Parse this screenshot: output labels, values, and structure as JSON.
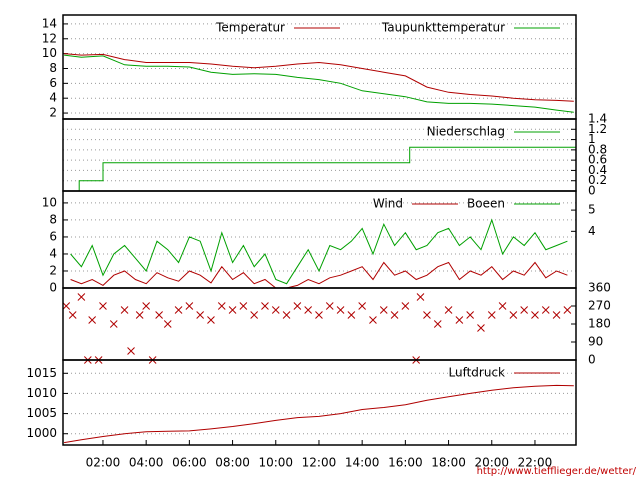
{
  "chart_data": [
    {
      "type": "line",
      "xlim": [
        0.15,
        23.9
      ],
      "ylim": [
        1.2,
        15.2
      ],
      "yticks": [
        2,
        4,
        6,
        8,
        10,
        12,
        14
      ],
      "grid": true,
      "x": [
        0.2,
        1,
        2,
        3,
        4,
        5,
        6,
        7,
        8,
        9,
        10,
        11,
        12,
        13,
        14,
        15,
        16,
        17,
        18,
        19,
        20,
        21,
        22,
        23,
        23.8
      ],
      "series": [
        {
          "name": "Temperatur",
          "color": "#b00000",
          "values": [
            10.0,
            9.8,
            9.9,
            9.2,
            8.8,
            8.8,
            8.8,
            8.6,
            8.3,
            8.1,
            8.3,
            8.6,
            8.8,
            8.5,
            8.0,
            7.5,
            7.0,
            5.5,
            4.8,
            4.5,
            4.3,
            4.0,
            3.8,
            3.7,
            3.6
          ]
        },
        {
          "name": "Taupunkttemperatur",
          "color": "#00a000",
          "values": [
            9.8,
            9.5,
            9.7,
            8.5,
            8.3,
            8.3,
            8.2,
            7.5,
            7.2,
            7.3,
            7.2,
            6.8,
            6.5,
            6.0,
            5.0,
            4.6,
            4.2,
            3.5,
            3.3,
            3.3,
            3.2,
            3.0,
            2.8,
            2.4,
            2.1
          ]
        }
      ]
    },
    {
      "type": "line",
      "xlim": [
        0.15,
        23.9
      ],
      "y2lim": [
        0,
        1.4
      ],
      "y2ticks": [
        0,
        0.2,
        0.4,
        0.6,
        0.8,
        1,
        1.2,
        1.4
      ],
      "grid": true,
      "x": [
        0.9,
        0.9,
        2,
        2,
        16.2,
        16.2,
        23.9
      ],
      "series": [
        {
          "name": "Niederschlag",
          "color": "#00a000",
          "axis": "y2",
          "values": [
            0,
            0.2,
            0.2,
            0.55,
            0.55,
            0.85,
            0.85
          ]
        }
      ]
    },
    {
      "type": "line",
      "xlim": [
        0.15,
        23.9
      ],
      "ylim": [
        0,
        11.4
      ],
      "yticks": [
        0,
        2,
        4,
        6,
        8,
        10
      ],
      "y2lim": [
        1.33,
        5.9
      ],
      "y2ticks": [
        4,
        5
      ],
      "grid": true,
      "x": [
        0.5,
        1,
        1.5,
        2,
        2.5,
        3,
        3.5,
        4,
        4.5,
        5,
        5.5,
        6,
        6.5,
        7,
        7.5,
        8,
        8.5,
        9,
        9.5,
        10,
        10.5,
        11,
        11.5,
        12,
        12.5,
        13,
        13.5,
        14,
        14.5,
        15,
        15.5,
        16,
        16.5,
        17,
        17.5,
        18,
        18.5,
        19,
        19.5,
        20,
        20.5,
        21,
        21.5,
        22,
        22.5,
        23,
        23.5
      ],
      "series": [
        {
          "name": "Wind",
          "color": "#b00000",
          "values": [
            1,
            0.5,
            1,
            0.3,
            1.5,
            2,
            1,
            0.5,
            1.8,
            1.2,
            0.8,
            2,
            1.5,
            0.6,
            2.5,
            1,
            1.8,
            0.5,
            1,
            0,
            0,
            0.3,
            1,
            0.5,
            1.2,
            1.5,
            2,
            2.5,
            1,
            3,
            1.5,
            2,
            1,
            1.5,
            2.5,
            3,
            1,
            2,
            1.5,
            2.5,
            1,
            2,
            1.5,
            3,
            1.2,
            2,
            1.5
          ]
        },
        {
          "name": "Boeen",
          "color": "#00a000",
          "values": [
            4,
            2.5,
            5,
            1.5,
            4,
            5,
            3.5,
            2,
            5.5,
            4.5,
            3,
            6,
            5.5,
            2,
            6.5,
            3,
            5,
            2.5,
            4,
            1,
            0.5,
            2.5,
            4.5,
            2,
            5,
            4.5,
            5.5,
            7,
            4,
            7.5,
            5,
            6.5,
            4.5,
            5,
            6.5,
            7,
            5,
            6,
            4.5,
            8,
            4,
            6,
            5,
            6.5,
            4.5,
            5,
            5.5
          ]
        }
      ]
    },
    {
      "type": "scatter",
      "xlim": [
        0.15,
        23.9
      ],
      "y2lim": [
        0,
        360
      ],
      "y2ticks": [
        0,
        90,
        180,
        270,
        360
      ],
      "color": "#b00000",
      "x": [
        0.3,
        0.6,
        1,
        1.3,
        1.5,
        1.8,
        2,
        2.5,
        3,
        3.3,
        3.7,
        4,
        4.3,
        4.6,
        5,
        5.5,
        6,
        6.5,
        7,
        7.5,
        8,
        8.5,
        9,
        9.5,
        10,
        10.5,
        11,
        11.5,
        12,
        12.5,
        13,
        13.5,
        14,
        14.5,
        15,
        15.5,
        16,
        16.5,
        16.7,
        17,
        17.5,
        18,
        18.5,
        19,
        19.5,
        20,
        20.5,
        21,
        21.5,
        22,
        22.5,
        23,
        23.5
      ],
      "values": [
        270,
        225,
        315,
        0,
        200,
        0,
        270,
        180,
        250,
        45,
        225,
        270,
        0,
        225,
        180,
        250,
        270,
        225,
        200,
        270,
        250,
        270,
        225,
        270,
        250,
        225,
        270,
        250,
        225,
        270,
        250,
        225,
        270,
        200,
        250,
        225,
        270,
        0,
        315,
        225,
        180,
        250,
        200,
        225,
        160,
        225,
        270,
        225,
        250,
        225,
        250,
        225,
        250
      ]
    },
    {
      "type": "line",
      "xlim": [
        0.15,
        23.9
      ],
      "ylim": [
        997.2,
        1018.3
      ],
      "yticks": [
        1000,
        1005,
        1010,
        1015
      ],
      "grid": true,
      "xticks": [
        {
          "value": 2,
          "label": "02:00"
        },
        {
          "value": 4,
          "label": "04:00"
        },
        {
          "value": 6,
          "label": "06:00"
        },
        {
          "value": 8,
          "label": "08:00"
        },
        {
          "value": 10,
          "label": "10:00"
        },
        {
          "value": 12,
          "label": "12:00"
        },
        {
          "value": 14,
          "label": "14:00"
        },
        {
          "value": 16,
          "label": "16:00"
        },
        {
          "value": 18,
          "label": "18:00"
        },
        {
          "value": 20,
          "label": "20:00"
        },
        {
          "value": 22,
          "label": "22:00"
        }
      ],
      "x": [
        0.2,
        1,
        2,
        3,
        4,
        5,
        6,
        7,
        8,
        9,
        10,
        11,
        12,
        13,
        14,
        15,
        16,
        17,
        18,
        19,
        20,
        21,
        22,
        23,
        23.8
      ],
      "series": [
        {
          "name": "Luftdruck",
          "color": "#b00000",
          "values": [
            997.8,
            998.5,
            999.3,
            1000,
            1000.5,
            1000.6,
            1000.7,
            1001.2,
            1001.8,
            1002.5,
            1003.3,
            1004,
            1004.3,
            1005,
            1006,
            1006.5,
            1007.2,
            1008.3,
            1009.2,
            1010,
            1010.8,
            1011.4,
            1011.8,
            1012,
            1011.9
          ]
        }
      ]
    }
  ],
  "footer": "http://www.tiefflieger.de/wetter/"
}
